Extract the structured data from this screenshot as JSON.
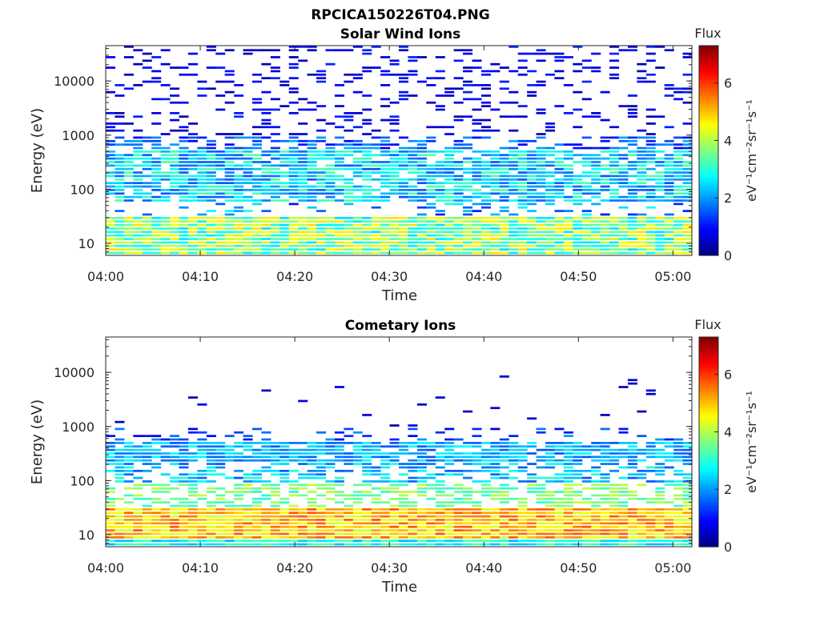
{
  "figure_title": "RPCICA150226T04.PNG",
  "chart_data": [
    {
      "type": "heatmap",
      "title": "Solar Wind Ions",
      "xlabel": "Time",
      "ylabel": "Energy (eV)",
      "xlim": [
        "04:00",
        "05:02"
      ],
      "ylim": [
        6,
        45000
      ],
      "yscale": "log",
      "xticks": [
        "04:00",
        "04:10",
        "04:20",
        "04:30",
        "04:40",
        "04:50",
        "05:00"
      ],
      "yticks": [
        "10",
        "100",
        "1000",
        "10000"
      ],
      "colorbar": {
        "title": "Flux",
        "label": "eV⁻¹cm⁻²sr⁻¹s⁻¹",
        "ticks": [
          "0",
          "2",
          "4",
          "6"
        ],
        "range": [
          0,
          7.3
        ],
        "colormap": "jet"
      },
      "grid": false,
      "bands": [
        {
          "energy_range": [
            6,
            30
          ],
          "flux_range": [
            2.5,
            4.8
          ],
          "coverage": "continuous"
        },
        {
          "energy_range": [
            30,
            60
          ],
          "flux_range": [
            1,
            3
          ],
          "coverage": "sparse"
        },
        {
          "energy_range": [
            60,
            500
          ],
          "flux_range": [
            1.5,
            3.4
          ],
          "coverage": "dense"
        },
        {
          "energy_range": [
            500,
            1000
          ],
          "flux_range": [
            0.8,
            2.2
          ],
          "coverage": "medium"
        },
        {
          "energy_range": [
            1000,
            45000
          ],
          "flux_range": [
            0.3,
            1.2
          ],
          "coverage": "sparse"
        }
      ]
    },
    {
      "type": "heatmap",
      "title": "Cometary Ions",
      "xlabel": "Time",
      "ylabel": "Energy (eV)",
      "xlim": [
        "04:00",
        "05:02"
      ],
      "ylim": [
        6,
        45000
      ],
      "yscale": "log",
      "xticks": [
        "04:00",
        "04:10",
        "04:20",
        "04:30",
        "04:40",
        "04:50",
        "05:00"
      ],
      "yticks": [
        "10",
        "100",
        "1000",
        "10000"
      ],
      "colorbar": {
        "title": "Flux",
        "label": "eV⁻¹cm⁻²sr⁻¹s⁻¹",
        "ticks": [
          "0",
          "2",
          "4",
          "6"
        ],
        "range": [
          0,
          7.3
        ],
        "colormap": "jet"
      },
      "grid": false,
      "bands": [
        {
          "energy_range": [
            6,
            8
          ],
          "flux_range": [
            2.2,
            3.5
          ],
          "coverage": "continuous"
        },
        {
          "energy_range": [
            8,
            30
          ],
          "flux_range": [
            4.2,
            5.8
          ],
          "coverage": "continuous"
        },
        {
          "energy_range": [
            30,
            90
          ],
          "flux_range": [
            3,
            4.2
          ],
          "coverage": "medium"
        },
        {
          "energy_range": [
            90,
            200
          ],
          "flux_range": [
            1.5,
            3
          ],
          "coverage": "medium"
        },
        {
          "energy_range": [
            200,
            550
          ],
          "flux_range": [
            1.5,
            2.8
          ],
          "coverage": "dense"
        },
        {
          "energy_range": [
            550,
            1000
          ],
          "flux_range": [
            0.8,
            2
          ],
          "coverage": "sparse"
        },
        {
          "energy_range": [
            1000,
            10000
          ],
          "flux_range": [
            0.3,
            0.8
          ],
          "coverage": "rare"
        }
      ]
    }
  ]
}
